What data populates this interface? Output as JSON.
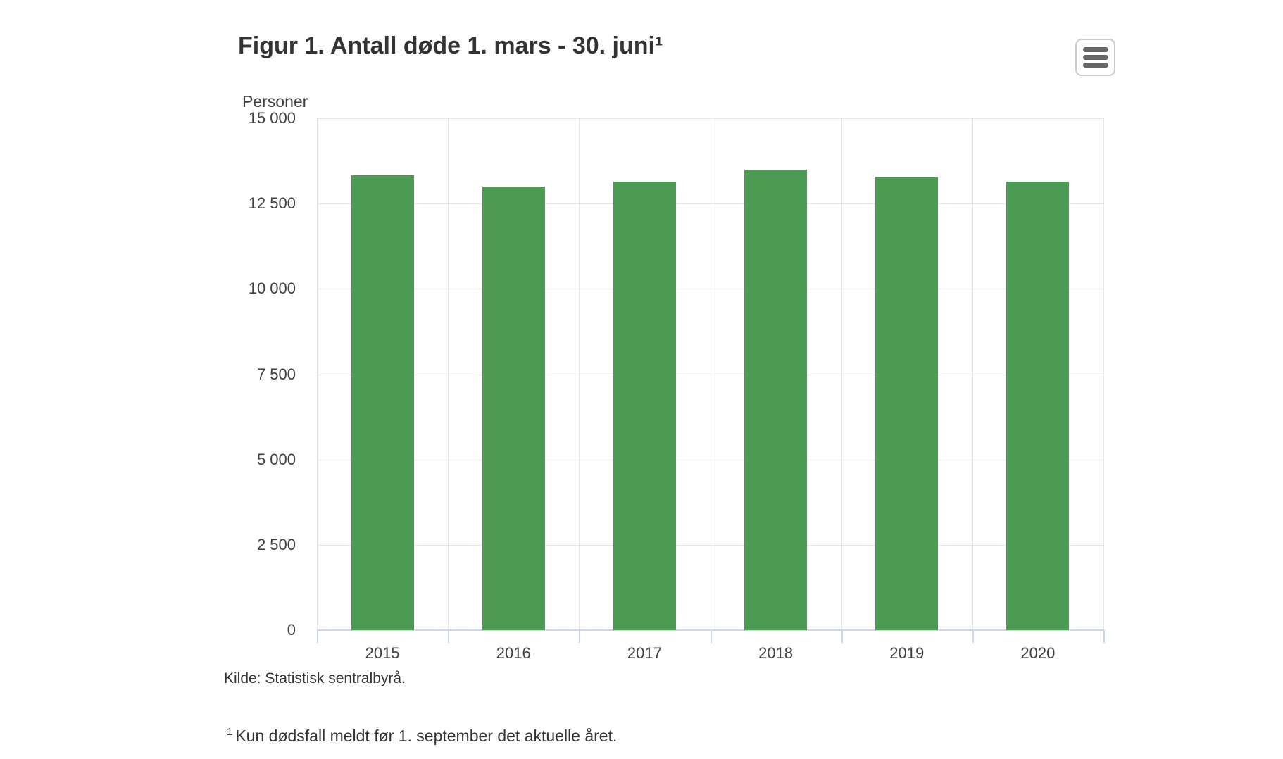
{
  "header": {
    "title": "Figur 1. Antall døde 1. mars - 30. juni¹",
    "menu_icon": "hamburger-menu-icon"
  },
  "chart_data": {
    "type": "bar",
    "title": "Figur 1. Antall døde 1. mars - 30. juni¹",
    "ylabel": "Personer",
    "xlabel": "",
    "categories": [
      "2015",
      "2016",
      "2017",
      "2018",
      "2019",
      "2020"
    ],
    "values": [
      13330,
      13000,
      13150,
      13490,
      13290,
      13150
    ],
    "ylim": [
      0,
      15000
    ],
    "ytick_step": 2500,
    "ytick_labels": [
      "0",
      "2 500",
      "5 000",
      "7 500",
      "10 000",
      "12 500",
      "15 000"
    ],
    "grid": true,
    "legend": "none",
    "bar_color": "#4b9b55"
  },
  "footer": {
    "source": "Kilde: Statistisk sentralbyrå.",
    "footnote_sup": "1",
    "footnote_text": "Kun dødsfall meldt før 1. september det aktuelle året."
  },
  "colors": {
    "bar": "#4b9b55",
    "gridline": "#e6e6e6",
    "axis_line": "#ccd6eb",
    "title_text": "#333333",
    "axis_text": "#404040",
    "icon_bar": "#666666",
    "button_border": "#cccccc",
    "background": "#ffffff"
  }
}
